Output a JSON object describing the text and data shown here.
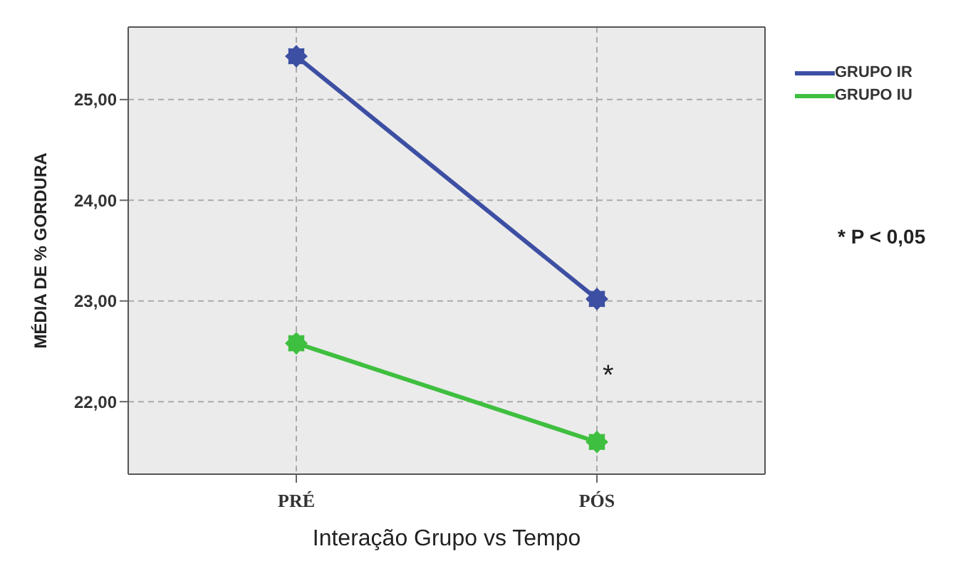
{
  "chart_data": {
    "type": "line",
    "xlabel": "Interação Grupo vs Tempo",
    "ylabel": "MÉDIA DE % GORDURA",
    "categories": [
      "PRÉ",
      "PÓS"
    ],
    "series": [
      {
        "name": "GRUPO IR",
        "color": "#3d4fa3",
        "values": [
          25.43,
          23.02
        ]
      },
      {
        "name": "GRUPO IU",
        "color": "#3fbf3f",
        "values": [
          22.58,
          21.6
        ]
      }
    ],
    "ylim": [
      21.28,
      25.72
    ],
    "yticks": [
      {
        "value": 22,
        "label": "22,00"
      },
      {
        "value": 23,
        "label": "23,00"
      },
      {
        "value": 24,
        "label": "24,00"
      },
      {
        "value": 25,
        "label": "25,00"
      }
    ],
    "grid": true,
    "legend": "top right",
    "marker": "star",
    "line_style": "solid",
    "annotations": [
      "*",
      "* P < 0,05"
    ]
  }
}
